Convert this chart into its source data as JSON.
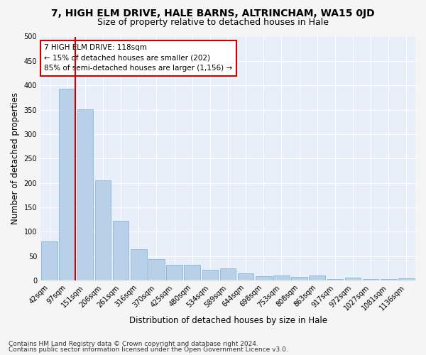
{
  "title": "7, HIGH ELM DRIVE, HALE BARNS, ALTRINCHAM, WA15 0JD",
  "subtitle": "Size of property relative to detached houses in Hale",
  "xlabel": "Distribution of detached houses by size in Hale",
  "ylabel": "Number of detached properties",
  "categories": [
    "42sqm",
    "97sqm",
    "151sqm",
    "206sqm",
    "261sqm",
    "316sqm",
    "370sqm",
    "425sqm",
    "480sqm",
    "534sqm",
    "589sqm",
    "644sqm",
    "698sqm",
    "753sqm",
    "808sqm",
    "863sqm",
    "917sqm",
    "972sqm",
    "1027sqm",
    "1081sqm",
    "1136sqm"
  ],
  "values": [
    80,
    393,
    351,
    205,
    122,
    64,
    44,
    32,
    32,
    22,
    24,
    14,
    9,
    10,
    7,
    10,
    3,
    5,
    3,
    2,
    4
  ],
  "bar_color": "#b8d0e8",
  "bar_edge_color": "#7aafd4",
  "red_line_color": "#cc0000",
  "annotation_text": "7 HIGH ELM DRIVE: 118sqm\n← 15% of detached houses are smaller (202)\n85% of semi-detached houses are larger (1,156) →",
  "annotation_box_facecolor": "#ffffff",
  "annotation_box_edgecolor": "#cc0000",
  "ylim": [
    0,
    500
  ],
  "yticks": [
    0,
    50,
    100,
    150,
    200,
    250,
    300,
    350,
    400,
    450,
    500
  ],
  "footer1": "Contains HM Land Registry data © Crown copyright and database right 2024.",
  "footer2": "Contains public sector information licensed under the Open Government Licence v3.0.",
  "bg_color": "#e8eff8",
  "fig_bg_color": "#f5f5f5",
  "grid_color": "#ffffff",
  "title_fontsize": 10,
  "subtitle_fontsize": 9,
  "axis_label_fontsize": 8.5,
  "tick_fontsize": 7,
  "annotation_fontsize": 7.5,
  "footer_fontsize": 6.5
}
